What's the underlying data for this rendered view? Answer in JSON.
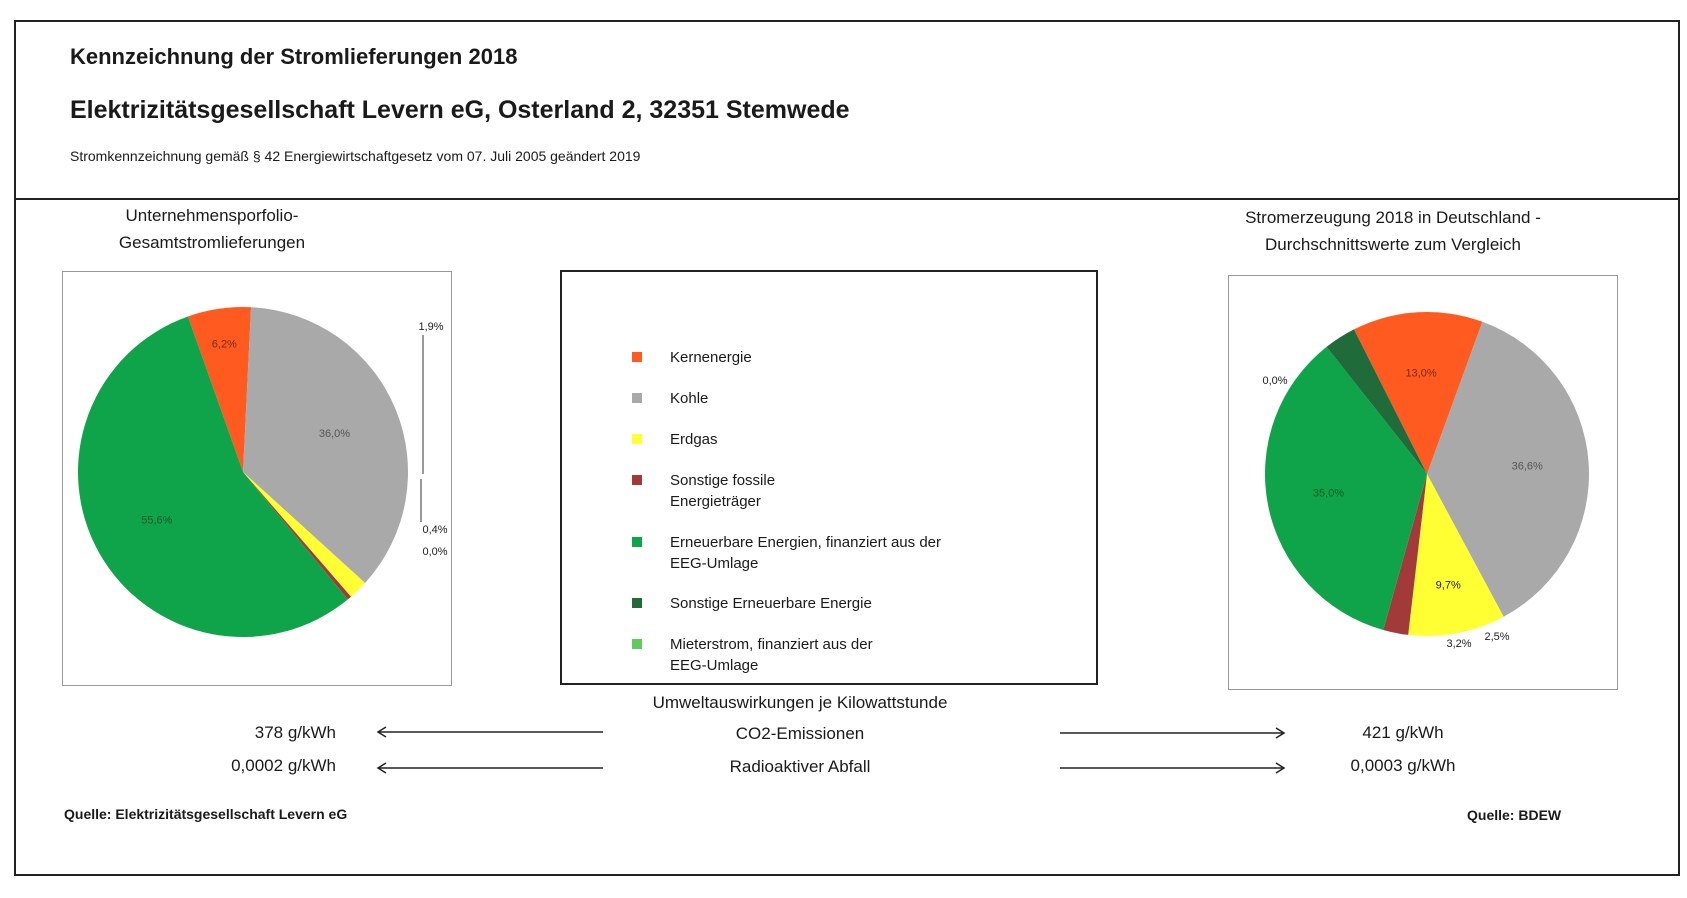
{
  "header": {
    "title": "Kennzeichnung der Stromlieferungen 2018",
    "company": "Elektrizitätsgesellschaft Levern eG, Osterland 2, 32351 Stemwede",
    "subtitle": "Stromkennzeichnung gemäß § 42 Energiewirtschaftgesetz vom 07. Juli 2005 geändert 2019"
  },
  "left_chart_title": [
    "Unternehmensporfolio-",
    "Gesamtstromlieferungen"
  ],
  "right_chart_title": [
    "Stromerzeugung 2018 in Deutschland -",
    "Durchschnittswerte zum Vergleich"
  ],
  "legend": [
    {
      "label": "Kernenergie",
      "color": "#ff5a1f"
    },
    {
      "label": "Kohle",
      "color": "#a9a9a9"
    },
    {
      "label": "Erdgas",
      "color": "#ffff33"
    },
    {
      "label": "Sonstige fossile Energieträger",
      "color": "#a33a3a"
    },
    {
      "label": "Erneuerbare Energien, finanziert aus der EEG-Umlage",
      "color": "#10a44a"
    },
    {
      "label": "Sonstige Erneuerbare Energie",
      "color": "#1f6b3a"
    },
    {
      "label": "Mieterstrom, finanziert aus der EEG-Umlage",
      "color": "#5dcc5d"
    }
  ],
  "environment": {
    "heading": "Umweltauswirkungen je Kilowattstunde",
    "rows": [
      {
        "label": "CO2-Emissionen",
        "left": "378 g/kWh",
        "right": "421 g/kWh"
      },
      {
        "label": "Radioaktiver Abfall",
        "left": "0,0002 g/kWh",
        "right": "0,0003 g/kWh"
      }
    ]
  },
  "sources": {
    "left": "Quelle: Elektrizitätsgesellschaft Levern eG",
    "right": "Quelle: BDEW"
  },
  "chart_data": [
    {
      "type": "pie",
      "title": "Unternehmensporfolio- Gesamtstromlieferungen",
      "labels": [
        "Kernenergie",
        "Kohle",
        "Erdgas",
        "Sonstige fossile Energieträger",
        "Erneuerbare Energien, finanziert aus der EEG-Umlage",
        "Sonstige Erneuerbare Energie",
        "Mieterstrom, finanziert aus der EEG-Umlage"
      ],
      "values": [
        6.2,
        36.0,
        1.9,
        0.4,
        55.6,
        0.0,
        0.0
      ],
      "value_labels": [
        "6,2%",
        "36,0%",
        "1,9%",
        "0,4%",
        "55,6%",
        "0,0%",
        ""
      ],
      "colors": [
        "#ff5a1f",
        "#a9a9a9",
        "#ffff33",
        "#a33a3a",
        "#10a44a",
        "#1f6b3a",
        "#5dcc5d"
      ]
    },
    {
      "type": "pie",
      "title": "Stromerzeugung 2018 in Deutschland - Durchschnittswerte zum Vergleich",
      "labels": [
        "Kernenergie",
        "Kohle",
        "Erdgas",
        "Sonstige fossile Energieträger",
        "Erneuerbare Energien, finanziert aus der EEG-Umlage",
        "Sonstige Erneuerbare Energie",
        "Mieterstrom, finanziert aus der EEG-Umlage"
      ],
      "values": [
        13.0,
        36.6,
        9.7,
        2.5,
        35.0,
        3.2,
        0.0
      ],
      "value_labels": [
        "13,0%",
        "36,6%",
        "9,7%",
        "2,5%",
        "35,0%",
        "3,2%",
        "0,0%"
      ],
      "colors": [
        "#ff5a1f",
        "#a9a9a9",
        "#ffff33",
        "#a33a3a",
        "#10a44a",
        "#1f6b3a",
        "#5dcc5d"
      ]
    }
  ]
}
